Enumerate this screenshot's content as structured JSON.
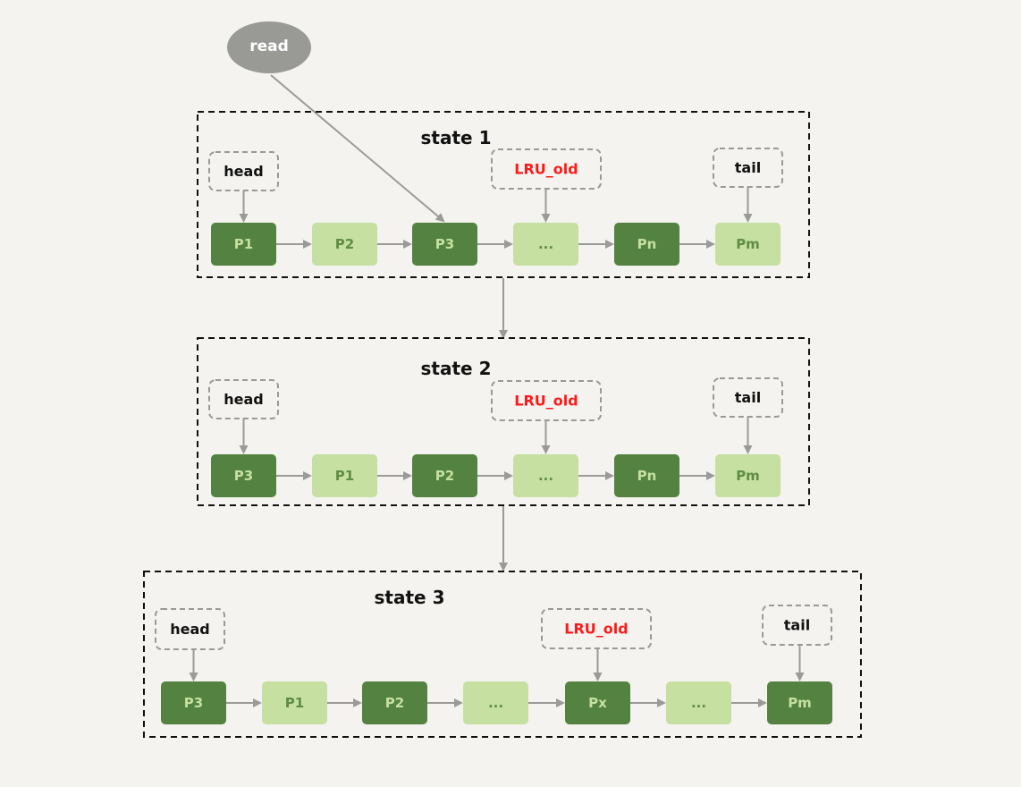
{
  "read_label": "read",
  "colors": {
    "dark_node": "#548240",
    "light_node": "#c5e0a0",
    "dark_text": "#c5e0a0",
    "light_text": "#5f8c45",
    "lru_old": "#ff1a1a",
    "arrow": "#9a9a98"
  },
  "states": [
    {
      "title": "state 1",
      "head": "head",
      "lru_old": "LRU_old",
      "tail": "tail",
      "nodes": [
        {
          "label": "P1",
          "dark": true
        },
        {
          "label": "P2",
          "dark": false
        },
        {
          "label": "P3",
          "dark": true
        },
        {
          "label": "...",
          "dark": false
        },
        {
          "label": "Pn",
          "dark": true
        },
        {
          "label": "Pm",
          "dark": false
        }
      ]
    },
    {
      "title": "state 2",
      "head": "head",
      "lru_old": "LRU_old",
      "tail": "tail",
      "nodes": [
        {
          "label": "P3",
          "dark": true
        },
        {
          "label": "P1",
          "dark": false
        },
        {
          "label": "P2",
          "dark": true
        },
        {
          "label": "...",
          "dark": false
        },
        {
          "label": "Pn",
          "dark": true
        },
        {
          "label": "Pm",
          "dark": false
        }
      ]
    },
    {
      "title": "state 3",
      "head": "head",
      "lru_old": "LRU_old",
      "tail": "tail",
      "nodes": [
        {
          "label": "P3",
          "dark": true
        },
        {
          "label": "P1",
          "dark": false
        },
        {
          "label": "P2",
          "dark": true
        },
        {
          "label": "...",
          "dark": false
        },
        {
          "label": "Px",
          "dark": true
        },
        {
          "label": "...",
          "dark": false
        },
        {
          "label": "Pm",
          "dark": true
        }
      ]
    }
  ]
}
